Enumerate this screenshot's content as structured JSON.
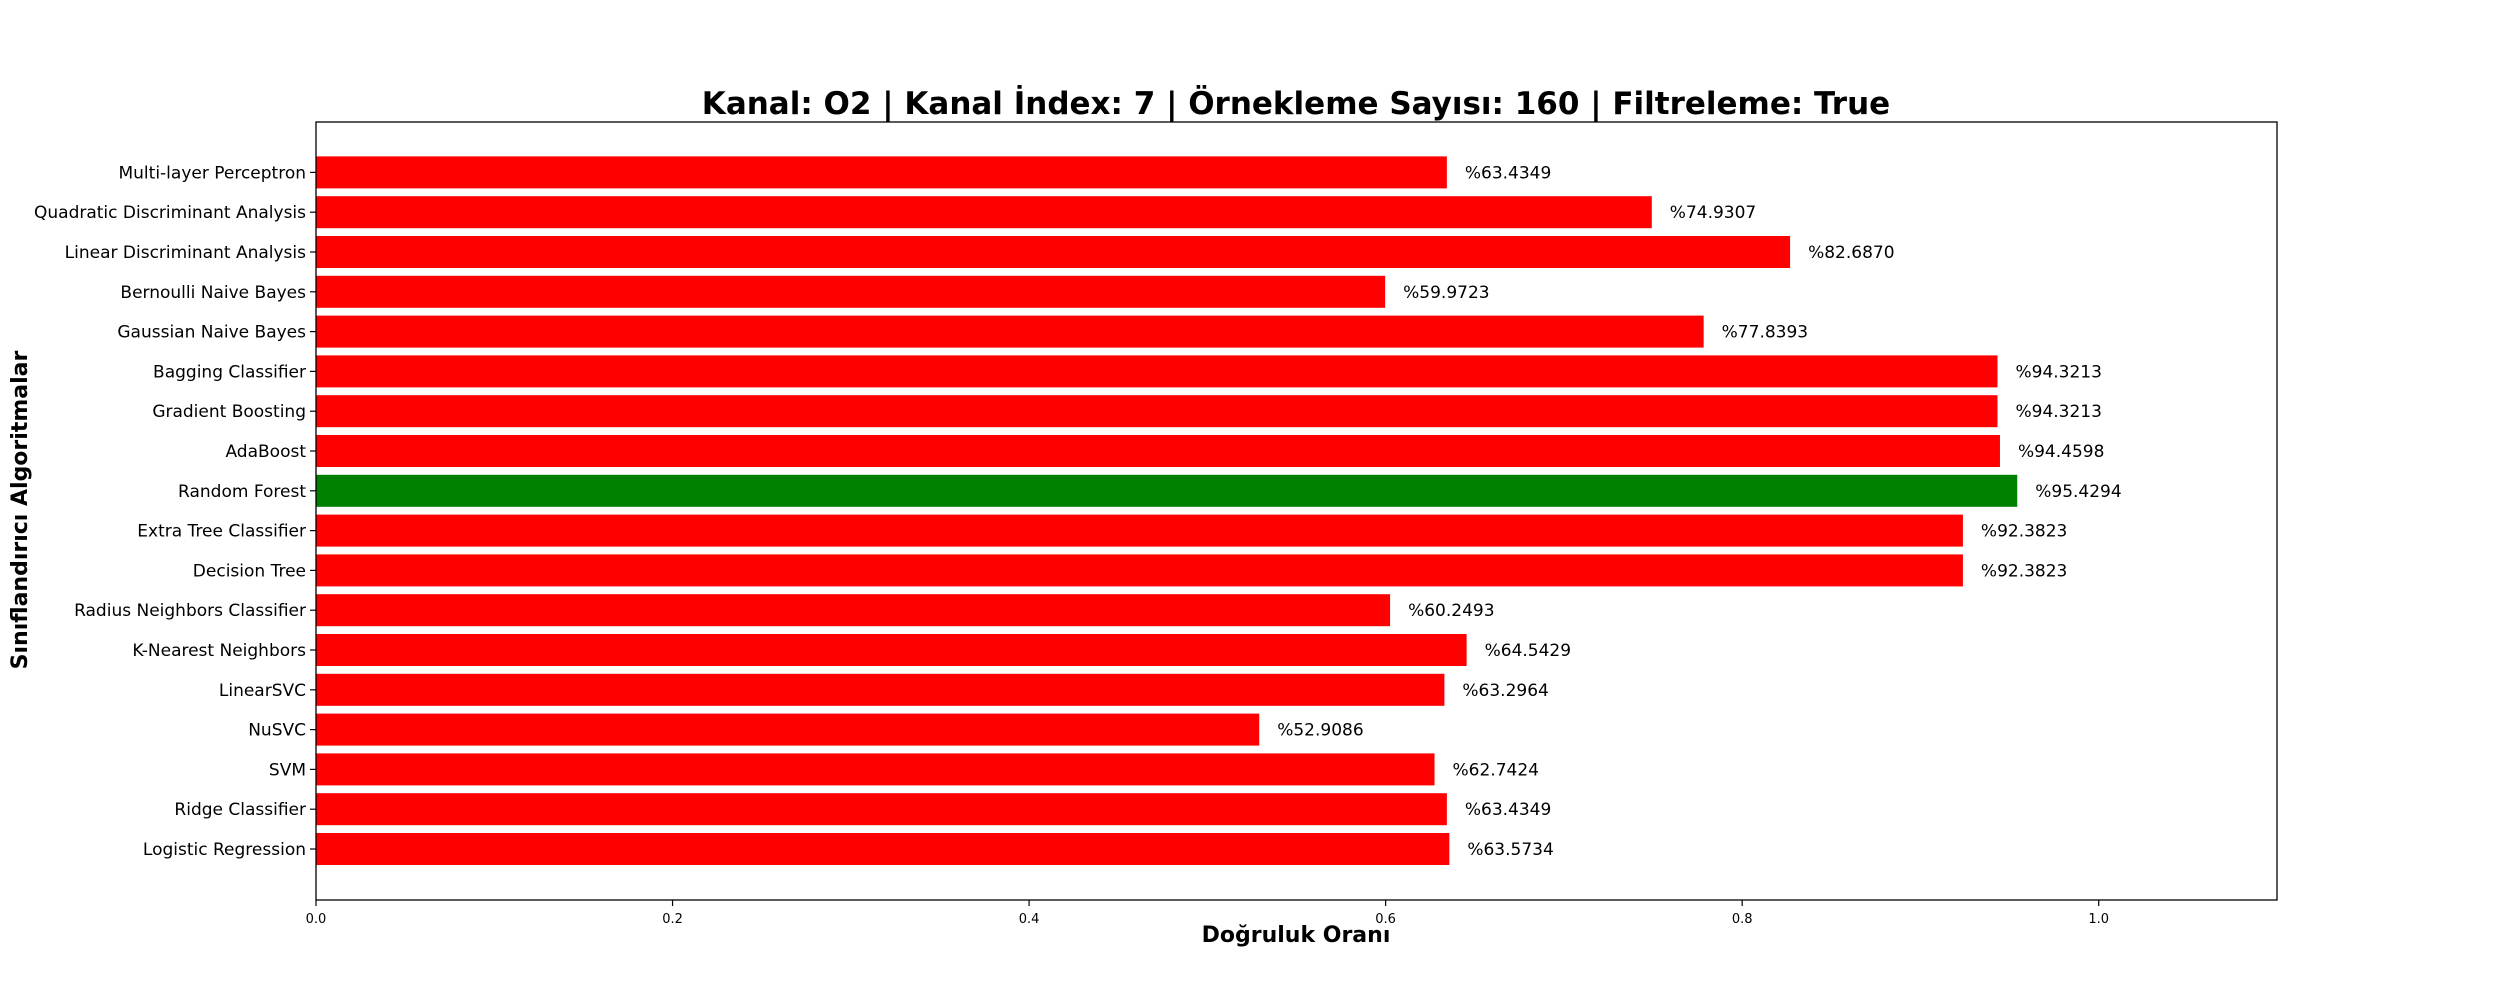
{
  "chart_data": {
    "type": "bar",
    "orientation": "horizontal",
    "title": "Kanal: O2 | Kanal İndex: 7 | Örnekleme Sayısı: 160 | Filtreleme: True",
    "xlabel": "Doğruluk Oranı",
    "ylabel": "Sınıflandırıcı Algoritmalar",
    "xlim": [
      0,
      1.1
    ],
    "xticks": [
      0.0,
      0.2,
      0.4,
      0.6,
      0.8,
      1.0
    ],
    "xtick_labels": [
      "0.0",
      "0.2",
      "0.4",
      "0.6",
      "0.8",
      "1.0"
    ],
    "grid": false,
    "categories": [
      "Logistic Regression",
      "Ridge Classifier",
      "SVM",
      "NuSVC",
      "LinearSVC",
      "K-Nearest Neighbors",
      "Radius Neighbors Classifier",
      "Decision Tree",
      "Extra Tree Classifier",
      "Random Forest",
      "AdaBoost",
      "Gradient Boosting",
      "Bagging Classifier",
      "Gaussian Naive Bayes",
      "Bernoulli Naive Bayes",
      "Linear Discriminant Analysis",
      "Quadratic Discriminant Analysis",
      "Multi-layer Perceptron"
    ],
    "values": [
      0.635734,
      0.634349,
      0.627424,
      0.529086,
      0.632964,
      0.645429,
      0.602493,
      0.923823,
      0.923823,
      0.954294,
      0.944598,
      0.943213,
      0.943213,
      0.778393,
      0.599723,
      0.82687,
      0.749307,
      0.634349
    ],
    "data_labels": [
      "%63.5734",
      "%63.4349",
      "%62.7424",
      "%52.9086",
      "%63.2964",
      "%64.5429",
      "%60.2493",
      "%92.3823",
      "%92.3823",
      "%95.4294",
      "%94.4598",
      "%94.3213",
      "%94.3213",
      "%77.8393",
      "%59.9723",
      "%82.6870",
      "%74.9307",
      "%63.4349"
    ],
    "colors": {
      "default": "#ff0000",
      "highlight": "#008000"
    },
    "highlight_category": "Random Forest"
  }
}
